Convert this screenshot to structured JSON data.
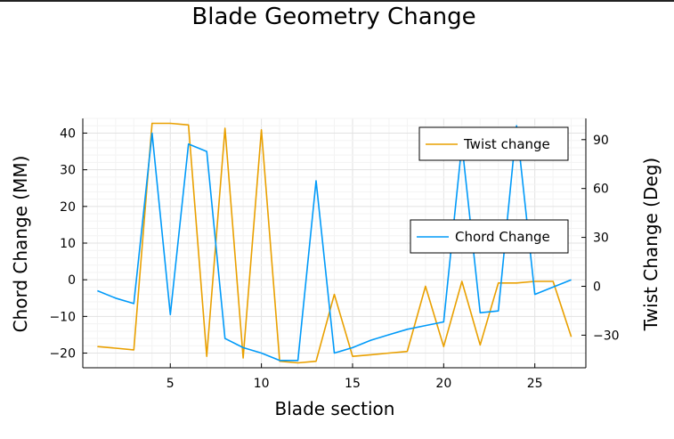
{
  "chart_data": {
    "type": "line",
    "title": "Blade Geometry Change",
    "xlabel": "Blade section",
    "ylabel_left": "Chord Change (MM)",
    "ylabel_right": "Twist Change (Deg)",
    "x": [
      1,
      2,
      3,
      4,
      5,
      6,
      7,
      8,
      9,
      10,
      11,
      12,
      13,
      14,
      15,
      16,
      17,
      18,
      19,
      20,
      21,
      22,
      23,
      24,
      25,
      26,
      27
    ],
    "xlim": [
      0.2,
      27.8
    ],
    "xticks": [
      5,
      10,
      15,
      20,
      25
    ],
    "ylim_left": [
      -24,
      44
    ],
    "yticks_left": [
      -20,
      -10,
      0,
      10,
      20,
      30,
      40
    ],
    "ylim_right": [
      -50,
      103
    ],
    "yticks_right": [
      -30,
      0,
      30,
      60,
      90
    ],
    "grid": true,
    "series": [
      {
        "name": "Chord Change",
        "axis": "left",
        "color": "#009af9",
        "legend_position": "right-middle",
        "values": [
          -3,
          -5,
          -6.5,
          40,
          -9.5,
          37,
          35,
          -16,
          -18.5,
          -20,
          -22,
          -22,
          27,
          -20,
          -18.5,
          -16.5,
          -15,
          -13.5,
          -12.5,
          -11.5,
          37,
          -9,
          -8.5,
          42,
          -4,
          -2,
          0
        ]
      },
      {
        "name": "Twist change",
        "axis": "right",
        "color": "#e9a000",
        "legend_position": "top-right",
        "values": [
          -37,
          -38,
          -39,
          100,
          100,
          99,
          -43,
          97,
          -44,
          96,
          -46,
          -47,
          -46,
          -5,
          -43,
          -42,
          -41,
          -40,
          0,
          -37,
          3,
          -36,
          2,
          2,
          3,
          3,
          -31
        ]
      }
    ]
  }
}
